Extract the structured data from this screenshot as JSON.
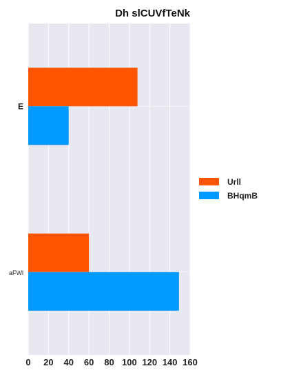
{
  "chart_data": {
    "type": "bar",
    "orientation": "horizontal",
    "title": "Dh  slCUVfTeNk",
    "categories": [
      "E",
      "aFWl"
    ],
    "series": [
      {
        "name": "Urll",
        "color": "#ff5500",
        "values": [
          108,
          60
        ]
      },
      {
        "name": "BHqmB",
        "color": "#0099ff",
        "values": [
          40,
          149
        ]
      }
    ],
    "xlim": [
      0,
      160
    ],
    "xticks": [
      0,
      20,
      40,
      60,
      80,
      100,
      120,
      140,
      160
    ],
    "xlabel": "",
    "ylabel": "",
    "grid": true,
    "legend_position": "right"
  }
}
